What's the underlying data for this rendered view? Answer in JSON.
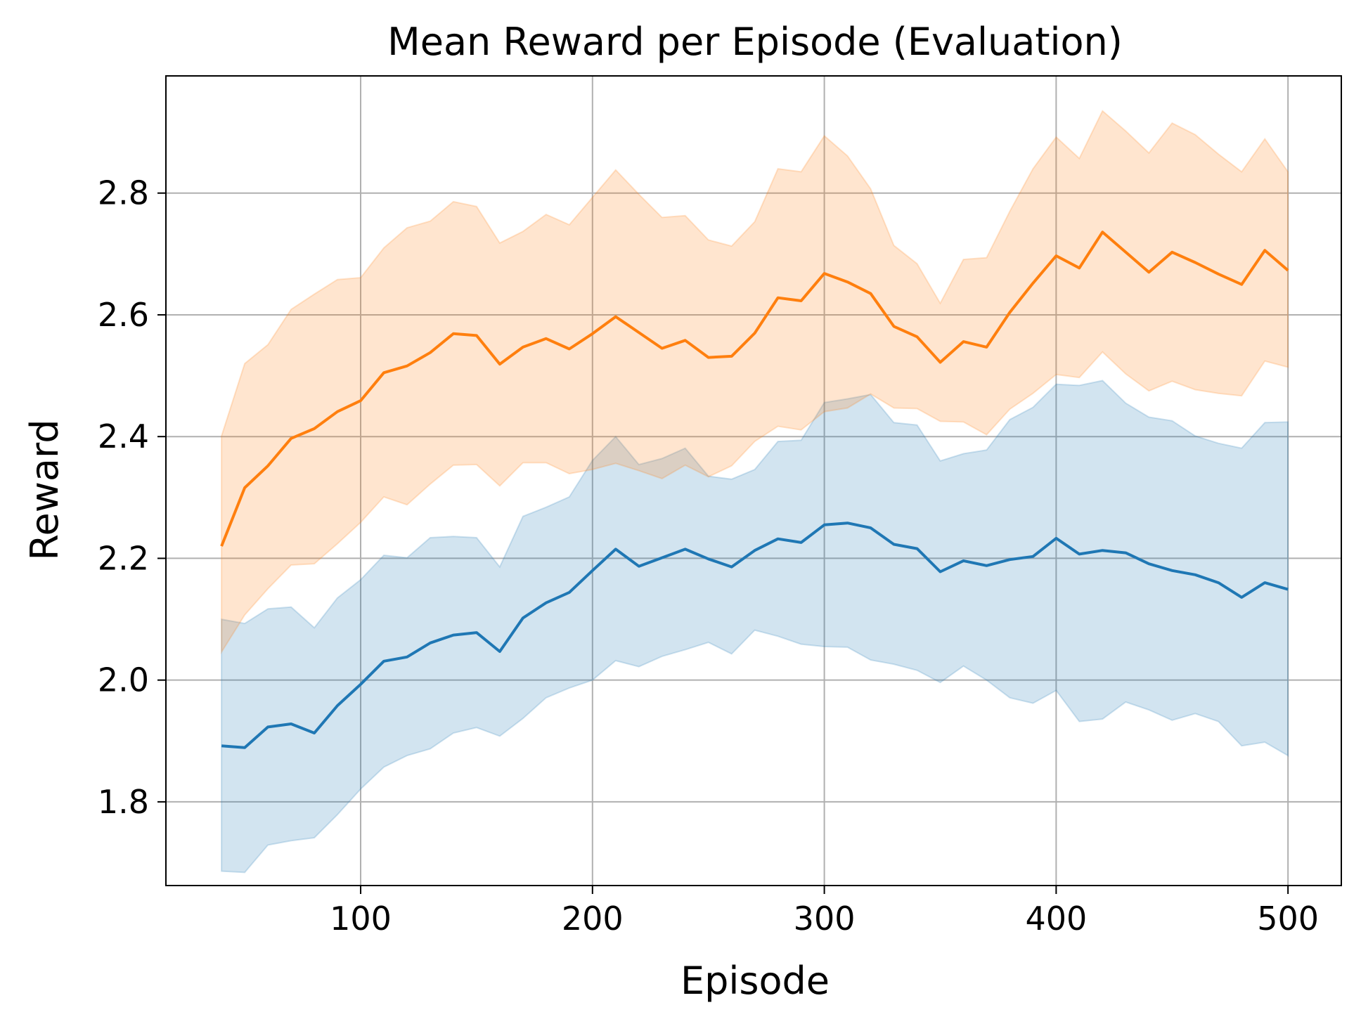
{
  "chart_data": {
    "type": "line",
    "title": "Mean Reward per Episode (Evaluation)",
    "xlabel": "Episode",
    "ylabel": "Reward",
    "xlim": [
      16,
      523
    ],
    "ylim": [
      1.6625,
      2.9925
    ],
    "xticks": [
      100,
      200,
      300,
      400,
      500
    ],
    "yticks": [
      1.8,
      2.0,
      2.2,
      2.4,
      2.6,
      2.8
    ],
    "xtick_labels": [
      "100",
      "200",
      "300",
      "400",
      "500"
    ],
    "ytick_labels": [
      "1.8",
      "2.0",
      "2.2",
      "2.4",
      "2.6",
      "2.8"
    ],
    "grid": true,
    "x": [
      40,
      50,
      60,
      70,
      80,
      90,
      100,
      110,
      120,
      130,
      140,
      150,
      160,
      170,
      180,
      190,
      200,
      210,
      220,
      230,
      240,
      250,
      260,
      270,
      280,
      290,
      300,
      310,
      320,
      330,
      340,
      350,
      360,
      370,
      380,
      390,
      400,
      410,
      420,
      430,
      440,
      450,
      460,
      470,
      480,
      490,
      500
    ],
    "series": [
      {
        "name": "blue",
        "color": "#1f77b4",
        "values": [
          1.892,
          1.889,
          1.923,
          1.928,
          1.913,
          1.958,
          1.993,
          2.031,
          2.038,
          2.061,
          2.074,
          2.078,
          2.047,
          2.102,
          2.127,
          2.144,
          2.18,
          2.215,
          2.187,
          2.201,
          2.215,
          2.199,
          2.186,
          2.213,
          2.232,
          2.226,
          2.255,
          2.258,
          2.25,
          2.223,
          2.216,
          2.178,
          2.196,
          2.188,
          2.198,
          2.203,
          2.233,
          2.207,
          2.213,
          2.209,
          2.191,
          2.18,
          2.173,
          2.16,
          2.136,
          2.16,
          2.149
        ],
        "lower": [
          1.686,
          1.684,
          1.729,
          1.736,
          1.741,
          1.779,
          1.821,
          1.857,
          1.876,
          1.887,
          1.913,
          1.922,
          1.908,
          1.937,
          1.971,
          1.987,
          2.0,
          2.032,
          2.022,
          2.039,
          2.05,
          2.062,
          2.043,
          2.082,
          2.072,
          2.059,
          2.055,
          2.054,
          2.033,
          2.026,
          2.016,
          1.996,
          2.023,
          2.0,
          1.971,
          1.962,
          1.983,
          1.932,
          1.936,
          1.964,
          1.951,
          1.934,
          1.945,
          1.932,
          1.892,
          1.898,
          1.876
        ],
        "upper": [
          2.1,
          2.093,
          2.117,
          2.12,
          2.086,
          2.135,
          2.165,
          2.205,
          2.201,
          2.234,
          2.236,
          2.234,
          2.186,
          2.269,
          2.284,
          2.301,
          2.361,
          2.4,
          2.354,
          2.364,
          2.381,
          2.335,
          2.33,
          2.346,
          2.392,
          2.394,
          2.456,
          2.462,
          2.469,
          2.423,
          2.419,
          2.36,
          2.372,
          2.378,
          2.428,
          2.448,
          2.486,
          2.484,
          2.492,
          2.455,
          2.432,
          2.426,
          2.401,
          2.389,
          2.381,
          2.423,
          2.424
        ]
      },
      {
        "name": "orange",
        "color": "#ff7f0e",
        "values": [
          2.22,
          2.316,
          2.352,
          2.397,
          2.413,
          2.441,
          2.459,
          2.505,
          2.516,
          2.538,
          2.569,
          2.566,
          2.519,
          2.547,
          2.561,
          2.544,
          2.569,
          2.597,
          2.571,
          2.545,
          2.558,
          2.53,
          2.532,
          2.57,
          2.628,
          2.623,
          2.668,
          2.654,
          2.635,
          2.581,
          2.564,
          2.522,
          2.556,
          2.547,
          2.604,
          2.652,
          2.697,
          2.677,
          2.736,
          2.703,
          2.67,
          2.703,
          2.686,
          2.667,
          2.65,
          2.706,
          2.673
        ],
        "lower": [
          2.046,
          2.107,
          2.15,
          2.189,
          2.191,
          2.224,
          2.259,
          2.301,
          2.288,
          2.322,
          2.353,
          2.354,
          2.319,
          2.357,
          2.357,
          2.339,
          2.346,
          2.356,
          2.344,
          2.331,
          2.353,
          2.334,
          2.352,
          2.392,
          2.417,
          2.411,
          2.441,
          2.447,
          2.47,
          2.447,
          2.446,
          2.425,
          2.424,
          2.403,
          2.445,
          2.471,
          2.502,
          2.497,
          2.539,
          2.503,
          2.475,
          2.491,
          2.477,
          2.471,
          2.467,
          2.524,
          2.514
        ],
        "upper": [
          2.401,
          2.52,
          2.551,
          2.609,
          2.634,
          2.658,
          2.661,
          2.71,
          2.743,
          2.754,
          2.786,
          2.778,
          2.718,
          2.737,
          2.765,
          2.748,
          2.793,
          2.838,
          2.798,
          2.76,
          2.763,
          2.723,
          2.713,
          2.753,
          2.84,
          2.835,
          2.894,
          2.861,
          2.807,
          2.714,
          2.684,
          2.619,
          2.691,
          2.694,
          2.77,
          2.84,
          2.892,
          2.857,
          2.935,
          2.902,
          2.866,
          2.915,
          2.896,
          2.864,
          2.835,
          2.889,
          2.835
        ]
      }
    ]
  }
}
